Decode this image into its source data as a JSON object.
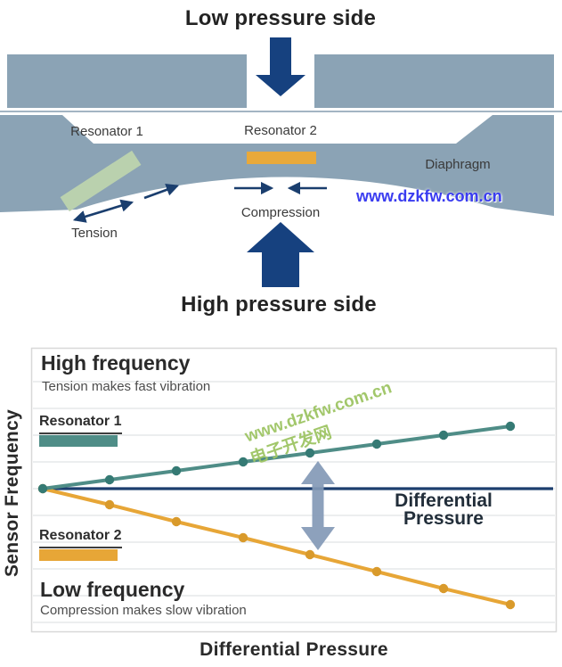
{
  "colors": {
    "body_gray": "#8ba3b5",
    "divider_line": "#a3b5c3",
    "navy": "#16417f",
    "navy_line": "#1c3e6e",
    "arrow_navy": "#1a3e6e",
    "green_bar": "#bad1ae",
    "orange_bar": "#e9a93a",
    "steel_arrow": "#8399b6",
    "watermark_blue": "#3a3cf0",
    "watermark_green": "#9ec564",
    "grid": "#e6e8ea",
    "chart_border": "#d8d8d8"
  },
  "top_diagram": {
    "title_top": "Low pressure side",
    "title_bottom": "High pressure side",
    "resonator1": "Resonator 1",
    "resonator2": "Resonator 2",
    "diaphragm": "Diaphragm",
    "tension": "Tension",
    "compression": "Compression",
    "watermark": "www.dzkfw.com.cn"
  },
  "chart": {
    "high_frequency_title": "High frequency",
    "high_frequency_subtitle": "Tension makes fast vibration",
    "low_frequency_title": "Low frequency",
    "low_frequency_subtitle": "Compression makes slow vibration",
    "legend1": "Resonator 1",
    "legend2": "Resonator 2",
    "baseline_label_line1": "Differential",
    "baseline_label_line2": "Pressure",
    "ylabel": "Sensor Frequency",
    "xlabel": "Differential Pressure",
    "watermark_line1": "www.dzkfw.com.cn",
    "watermark_line2": "电子开发网"
  },
  "chart_data": {
    "type": "line",
    "xlabel": "Differential Pressure",
    "ylabel": "Sensor Frequency",
    "x": [
      0,
      1,
      2,
      3,
      4,
      5,
      6,
      7
    ],
    "ylim": [
      0,
      100
    ],
    "grid": true,
    "tick_labels_shown": false,
    "baseline": {
      "value": 50,
      "label": "Differential Pressure",
      "color": "#1c3e6e"
    },
    "series": [
      {
        "name": "Resonator 1",
        "behavior": "High frequency — tension makes fast vibration",
        "color": "#4f8d87",
        "marker_color": "#357a74",
        "values": [
          50,
          53,
          56,
          59,
          62,
          65,
          68,
          71
        ]
      },
      {
        "name": "Resonator 2",
        "behavior": "Low frequency — compression makes slow vibration",
        "color": "#e7a637",
        "marker_color": "#d99a2b",
        "values": [
          50,
          44.6,
          38.9,
          33.5,
          27.8,
          22.1,
          16.4,
          11
        ]
      }
    ]
  }
}
